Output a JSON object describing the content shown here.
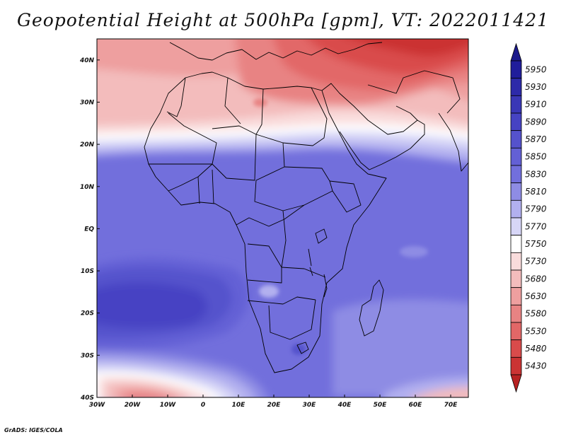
{
  "title": "Geopotential Height at 500hPa [gpm], VT: 2022011421",
  "credit": "GrADS: IGES/COLA",
  "map": {
    "projection": "latlon",
    "lon_range": [
      -30,
      75
    ],
    "lat_range": [
      -40,
      45
    ],
    "lon_ticks": [
      {
        "value": -30,
        "label": "30W"
      },
      {
        "value": -20,
        "label": "20W"
      },
      {
        "value": -10,
        "label": "10W"
      },
      {
        "value": 0,
        "label": "0"
      },
      {
        "value": 10,
        "label": "10E"
      },
      {
        "value": 20,
        "label": "20E"
      },
      {
        "value": 30,
        "label": "30E"
      },
      {
        "value": 40,
        "label": "40E"
      },
      {
        "value": 50,
        "label": "50E"
      },
      {
        "value": 60,
        "label": "60E"
      },
      {
        "value": 70,
        "label": "70E"
      }
    ],
    "lat_ticks": [
      {
        "value": 40,
        "label": "40N"
      },
      {
        "value": 30,
        "label": "30N"
      },
      {
        "value": 20,
        "label": "20N"
      },
      {
        "value": 10,
        "label": "10N"
      },
      {
        "value": 0,
        "label": "EQ"
      },
      {
        "value": -10,
        "label": "10S"
      },
      {
        "value": -20,
        "label": "20S"
      },
      {
        "value": -30,
        "label": "30S"
      },
      {
        "value": -40,
        "label": "40S"
      }
    ],
    "features": [
      "coastlines",
      "country-borders"
    ]
  },
  "colorbar": {
    "orientation": "vertical",
    "placement": "right",
    "levels": [
      {
        "label": "5950",
        "color": "#201d9b"
      },
      {
        "label": "5930",
        "color": "#2d2aa9"
      },
      {
        "label": "5910",
        "color": "#3a37b6"
      },
      {
        "label": "5890",
        "color": "#4643c3"
      },
      {
        "label": "5870",
        "color": "#5552cc"
      },
      {
        "label": "5850",
        "color": "#6360d5"
      },
      {
        "label": "5830",
        "color": "#726fdc"
      },
      {
        "label": "5810",
        "color": "#8e8ce4"
      },
      {
        "label": "5790",
        "color": "#b2b0ef"
      },
      {
        "label": "5770",
        "color": "#d7d6f7"
      },
      {
        "label": "5750",
        "color": "#ffffff"
      },
      {
        "label": "5730",
        "color": "#f9dcdc"
      },
      {
        "label": "5680",
        "color": "#f3bcbc"
      },
      {
        "label": "5630",
        "color": "#ee9f9f"
      },
      {
        "label": "5580",
        "color": "#e88383"
      },
      {
        "label": "5530",
        "color": "#e26767"
      },
      {
        "label": "5480",
        "color": "#d94b4b"
      },
      {
        "label": "5430",
        "color": "#cb3333"
      }
    ],
    "low_end_color": "#b82222",
    "high_end_color": "#1c1a8c"
  }
}
